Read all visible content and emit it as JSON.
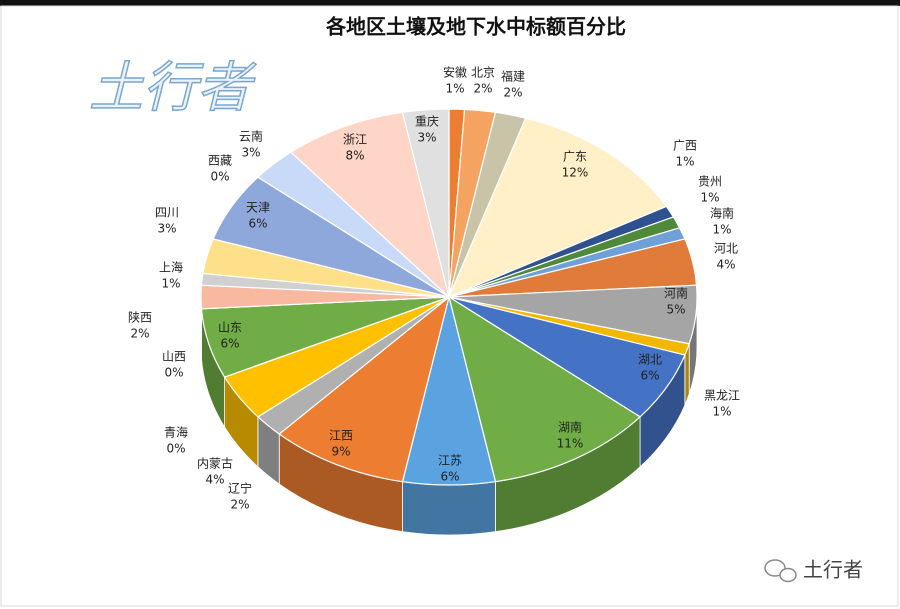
{
  "chart_data": {
    "type": "pie",
    "title": "各地区土壤及地下水中标额百分比",
    "categories": [
      "安徽",
      "北京",
      "福建",
      "广东",
      "广西",
      "贵州",
      "海南",
      "河北",
      "河南",
      "黑龙江",
      "湖北",
      "湖南",
      "江苏",
      "江西",
      "辽宁",
      "内蒙古",
      "青海",
      "山东",
      "山西",
      "陕西",
      "上海",
      "四川",
      "天津",
      "西藏",
      "云南",
      "浙江",
      "重庆"
    ],
    "values": [
      1,
      2,
      2,
      12,
      1,
      1,
      1,
      4,
      5,
      1,
      6,
      11,
      6,
      9,
      2,
      4,
      0,
      6,
      0,
      2,
      1,
      3,
      6,
      0,
      3,
      8,
      3
    ],
    "value_labels": [
      "1%",
      "2%",
      "2%",
      "12%",
      "1%",
      "1%",
      "1%",
      "4%",
      "5%",
      "1%",
      "6%",
      "11%",
      "6%",
      "9%",
      "2%",
      "4%",
      "0%",
      "6%",
      "0%",
      "2%",
      "1%",
      "3%",
      "6%",
      "0%",
      "3%",
      "8%",
      "3%"
    ],
    "colors": [
      "#ed7d31",
      "#f4a460",
      "#c9c3a8",
      "#fff0c8",
      "#2f528f",
      "#4e8a3a",
      "#6fa0d8",
      "#e07b39",
      "#a5a5a5",
      "#f2b800",
      "#4472c4",
      "#70ad47",
      "#5ba3e0",
      "#ed7d31",
      "#b0b0b0",
      "#ffc000",
      "#4472c4",
      "#70ad47",
      "#264478",
      "#f8b9a0",
      "#d0d0d0",
      "#ffe08a",
      "#8fa8dc",
      "#b4c7e7",
      "#c9daf8",
      "#ffd5c8",
      "#e0e0e0"
    ],
    "annotations": [
      "土行者",
      "土行者"
    ]
  }
}
